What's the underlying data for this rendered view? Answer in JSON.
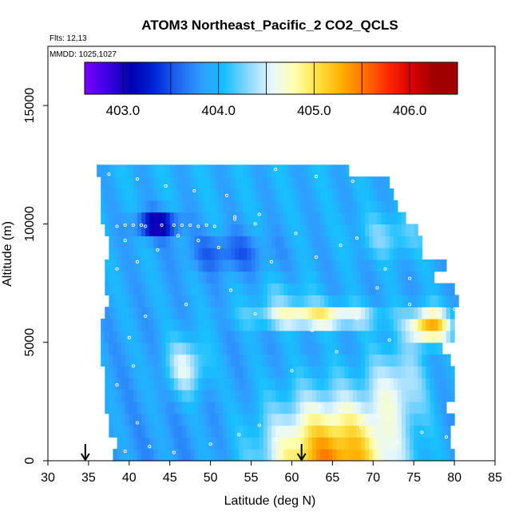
{
  "chart_data": {
    "type": "heatmap",
    "title": "ATOM3 Northeast_Pacific_2 CO2_QCLS",
    "annotations": [
      "Flts: 12,13",
      "MMDD: 1025,1027"
    ],
    "xlabel": "Latitude (deg N)",
    "ylabel": "Altitude (m)",
    "xlim": [
      30,
      85
    ],
    "ylim": [
      0,
      17500
    ],
    "x_ticks": [
      30,
      35,
      40,
      45,
      50,
      55,
      60,
      65,
      70,
      75,
      80,
      85
    ],
    "y_ticks": [
      0,
      5000,
      10000,
      15000
    ],
    "grid": false,
    "colorbar": {
      "placement": "top",
      "range": [
        402.6,
        406.5
      ],
      "tick_values": [
        403.0,
        404.0,
        405.0,
        406.0
      ],
      "tick_labels": [
        "403.0",
        "404.0",
        "405.0",
        "406.0"
      ],
      "colors": [
        "#7b00ff",
        "#3a00e0",
        "#0000b0",
        "#0026d8",
        "#1f66f0",
        "#2f9cff",
        "#18c0ff",
        "#8ad6ff",
        "#e6f7ff",
        "#ffffb0",
        "#ffe040",
        "#ffb000",
        "#ff7000",
        "#ff2a00",
        "#d80000",
        "#a00000"
      ]
    },
    "markers": [
      {
        "type": "arrow",
        "x": 34.6,
        "y": 0
      },
      {
        "type": "arrow",
        "x": 61.2,
        "y": 0
      }
    ],
    "grid_points": {
      "x_range": [
        35.5,
        80.5
      ],
      "y_range": [
        0,
        12500
      ],
      "dx": 0.5,
      "dy": 500,
      "row_extents": [
        [
          38.0,
          80.0
        ],
        [
          38.5,
          79.5
        ],
        [
          37.5,
          79.5
        ],
        [
          37.5,
          80.0
        ],
        [
          37.0,
          79.0
        ],
        [
          37.0,
          80.0
        ],
        [
          37.0,
          80.0
        ],
        [
          37.0,
          80.0
        ],
        [
          36.5,
          79.5
        ],
        [
          36.5,
          78.5
        ],
        [
          36.5,
          80.0
        ],
        [
          36.5,
          80.0
        ],
        [
          37.0,
          80.0
        ],
        [
          37.5,
          80.5
        ],
        [
          37.0,
          80.0
        ],
        [
          37.0,
          77.5
        ],
        [
          37.0,
          79.0
        ],
        [
          37.5,
          76.0
        ],
        [
          37.5,
          76.0
        ],
        [
          37.0,
          75.5
        ],
        [
          36.5,
          74.0
        ],
        [
          36.5,
          73.0
        ],
        [
          36.5,
          72.5
        ],
        [
          36.5,
          72.0
        ],
        [
          36.0,
          67.0
        ]
      ]
    },
    "sample_points": [
      [
        39.5,
        400
      ],
      [
        41.0,
        1600
      ],
      [
        40.5,
        4000
      ],
      [
        42.5,
        600
      ],
      [
        45.5,
        350
      ],
      [
        50.0,
        700
      ],
      [
        53.5,
        1100
      ],
      [
        56.0,
        1500
      ],
      [
        58.0,
        900
      ],
      [
        61.0,
        700
      ],
      [
        63.5,
        2300
      ],
      [
        66.0,
        2100
      ],
      [
        68.5,
        1400
      ],
      [
        70.5,
        1900
      ],
      [
        73.0,
        800
      ],
      [
        76.0,
        1200
      ],
      [
        79.0,
        1000
      ],
      [
        38.5,
        3200
      ],
      [
        40.0,
        5200
      ],
      [
        42.0,
        6100
      ],
      [
        47.0,
        6600
      ],
      [
        52.5,
        7200
      ],
      [
        55.5,
        6200
      ],
      [
        60.0,
        3800
      ],
      [
        62.5,
        5500
      ],
      [
        65.5,
        4600
      ],
      [
        68.0,
        6000
      ],
      [
        70.5,
        7300
      ],
      [
        72.0,
        5100
      ],
      [
        74.5,
        6600
      ],
      [
        78.0,
        6200
      ],
      [
        80.0,
        6400
      ],
      [
        38.5,
        8100
      ],
      [
        39.5,
        9300
      ],
      [
        41.0,
        8400
      ],
      [
        43.5,
        8900
      ],
      [
        46.0,
        9500
      ],
      [
        48.5,
        9300
      ],
      [
        51.0,
        9000
      ],
      [
        53.0,
        10200
      ],
      [
        55.5,
        10000
      ],
      [
        57.5,
        8400
      ],
      [
        60.5,
        9600
      ],
      [
        63.0,
        8600
      ],
      [
        66.0,
        9100
      ],
      [
        68.0,
        9400
      ],
      [
        71.5,
        8100
      ],
      [
        74.5,
        7700
      ],
      [
        38.5,
        9900
      ],
      [
        39.5,
        9950
      ],
      [
        40.5,
        9950
      ],
      [
        41.5,
        9950
      ],
      [
        42.0,
        9900
      ],
      [
        44.0,
        9950
      ],
      [
        45.5,
        9950
      ],
      [
        46.5,
        9950
      ],
      [
        47.5,
        9950
      ],
      [
        48.5,
        9900
      ],
      [
        49.5,
        9950
      ],
      [
        50.5,
        9900
      ],
      [
        53.0,
        10300
      ],
      [
        56.0,
        10400
      ],
      [
        37.5,
        12100
      ],
      [
        41.0,
        11900
      ],
      [
        44.5,
        11600
      ],
      [
        48.0,
        11400
      ],
      [
        52.0,
        11200
      ],
      [
        58.0,
        12300
      ],
      [
        63.0,
        12000
      ],
      [
        67.5,
        11800
      ]
    ]
  }
}
